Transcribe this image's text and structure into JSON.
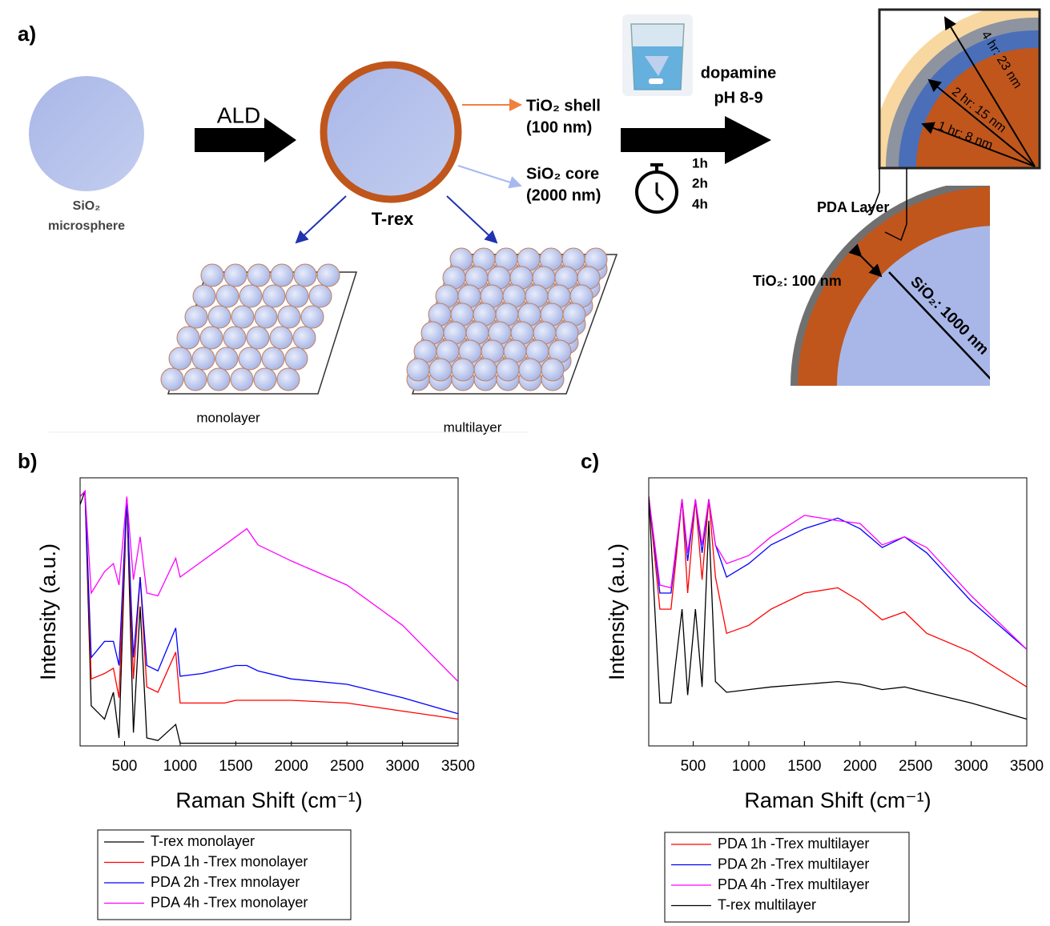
{
  "diagram": {
    "panel_label": "a)",
    "microsphere_label": [
      "SiO₂",
      "microsphere"
    ],
    "ald_label": "ALD",
    "trex_label": "T-rex",
    "shell_label": [
      "TiO₂ shell",
      "(100 nm)"
    ],
    "core_label": [
      "SiO₂ core",
      "(2000 nm)"
    ],
    "monolayer_label": "monolayer",
    "multilayer_label": "multilayer",
    "dopamine_label": [
      "dopamine",
      "pH 8-9"
    ],
    "time_labels": [
      "1h",
      "2h",
      "4h"
    ],
    "inset_labels": [
      "4 hr: 23 nm",
      "2 hr: 15 nm",
      "1 hr: 8 nm"
    ],
    "pda_layer_label": "PDA Layer",
    "tio2_label": "TiO₂: 100 nm",
    "sio2_label": "SiO₂: 1000 nm"
  },
  "chart_data": [
    {
      "type": "line",
      "panel_label": "b)",
      "xlabel": "Raman Shift (cm⁻¹)",
      "ylabel": "Intensity (a.u.)",
      "x": [
        100,
        144,
        200,
        320,
        400,
        450,
        520,
        580,
        640,
        700,
        800,
        960,
        1000,
        1200,
        1400,
        1500,
        1600,
        1700,
        2000,
        2500,
        3000,
        3500
      ],
      "xlim": [
        100,
        3500
      ],
      "xticks": [
        500,
        1000,
        1500,
        2000,
        2500,
        3000,
        3500
      ],
      "ylim": [
        0,
        100
      ],
      "legend": "below",
      "series": [
        {
          "name": "T-rex monolayer",
          "color": "#000000",
          "values": [
            90,
            95,
            15,
            10,
            20,
            3,
            93,
            5,
            52,
            3,
            2,
            8,
            1,
            1,
            1,
            1,
            1,
            1,
            1,
            1,
            1,
            1
          ]
        },
        {
          "name": "PDA 1h -Trex monolayer",
          "color": "#ff0000",
          "values": [
            93,
            95,
            25,
            27,
            29,
            18,
            93,
            25,
            63,
            22,
            20,
            35,
            16,
            16,
            16,
            17,
            17,
            17,
            17,
            16,
            13,
            10
          ]
        },
        {
          "name": "PDA 2h -Trex mnolayer",
          "color": "#0000ff",
          "values": [
            93,
            95,
            33,
            39,
            39,
            30,
            93,
            33,
            63,
            30,
            28,
            44,
            26,
            27,
            29,
            30,
            30,
            28,
            25,
            23,
            18,
            12
          ]
        },
        {
          "name": "PDA 4h -Trex monolayer",
          "color": "#ff00ff",
          "values": [
            93,
            95,
            57,
            65,
            68,
            60,
            93,
            62,
            78,
            57,
            56,
            70,
            63,
            69,
            75,
            78,
            81,
            75,
            69,
            60,
            45,
            24
          ]
        }
      ]
    },
    {
      "type": "line",
      "panel_label": "c)",
      "xlabel": "Raman Shift (cm⁻¹)",
      "ylabel": "Intensity (a.u.)",
      "x": [
        100,
        200,
        300,
        400,
        450,
        520,
        580,
        640,
        700,
        800,
        1000,
        1200,
        1500,
        1800,
        2000,
        2200,
        2400,
        2600,
        3000,
        3500
      ],
      "xlim": [
        100,
        3500
      ],
      "xticks": [
        500,
        1000,
        1500,
        2000,
        2500,
        3000,
        3500
      ],
      "ylim": [
        0,
        100
      ],
      "legend": "below",
      "series": [
        {
          "name": "PDA 1h -Trex multilayer",
          "color": "#ff0000",
          "values": [
            93,
            51,
            51,
            92,
            57,
            92,
            62,
            92,
            63,
            42,
            45,
            51,
            57,
            59,
            54,
            47,
            50,
            42,
            35,
            22
          ]
        },
        {
          "name": "PDA 2h -Trex multilayer",
          "color": "#0000ff",
          "values": [
            93,
            57,
            57,
            92,
            69,
            92,
            72,
            92,
            75,
            63,
            68,
            75,
            81,
            85,
            81,
            74,
            78,
            72,
            54,
            36
          ]
        },
        {
          "name": "PDA 4h -Trex multilayer",
          "color": "#ff00ff",
          "values": [
            93,
            60,
            59,
            92,
            72,
            92,
            75,
            92,
            75,
            68,
            71,
            78,
            86,
            84,
            83,
            75,
            78,
            74,
            56,
            36
          ]
        },
        {
          "name": "T-rex multilayer",
          "color": "#000000",
          "values": [
            93,
            16,
            16,
            51,
            19,
            51,
            22,
            84,
            24,
            20,
            21,
            22,
            23,
            24,
            23,
            21,
            22,
            20,
            16,
            10
          ]
        }
      ]
    }
  ]
}
